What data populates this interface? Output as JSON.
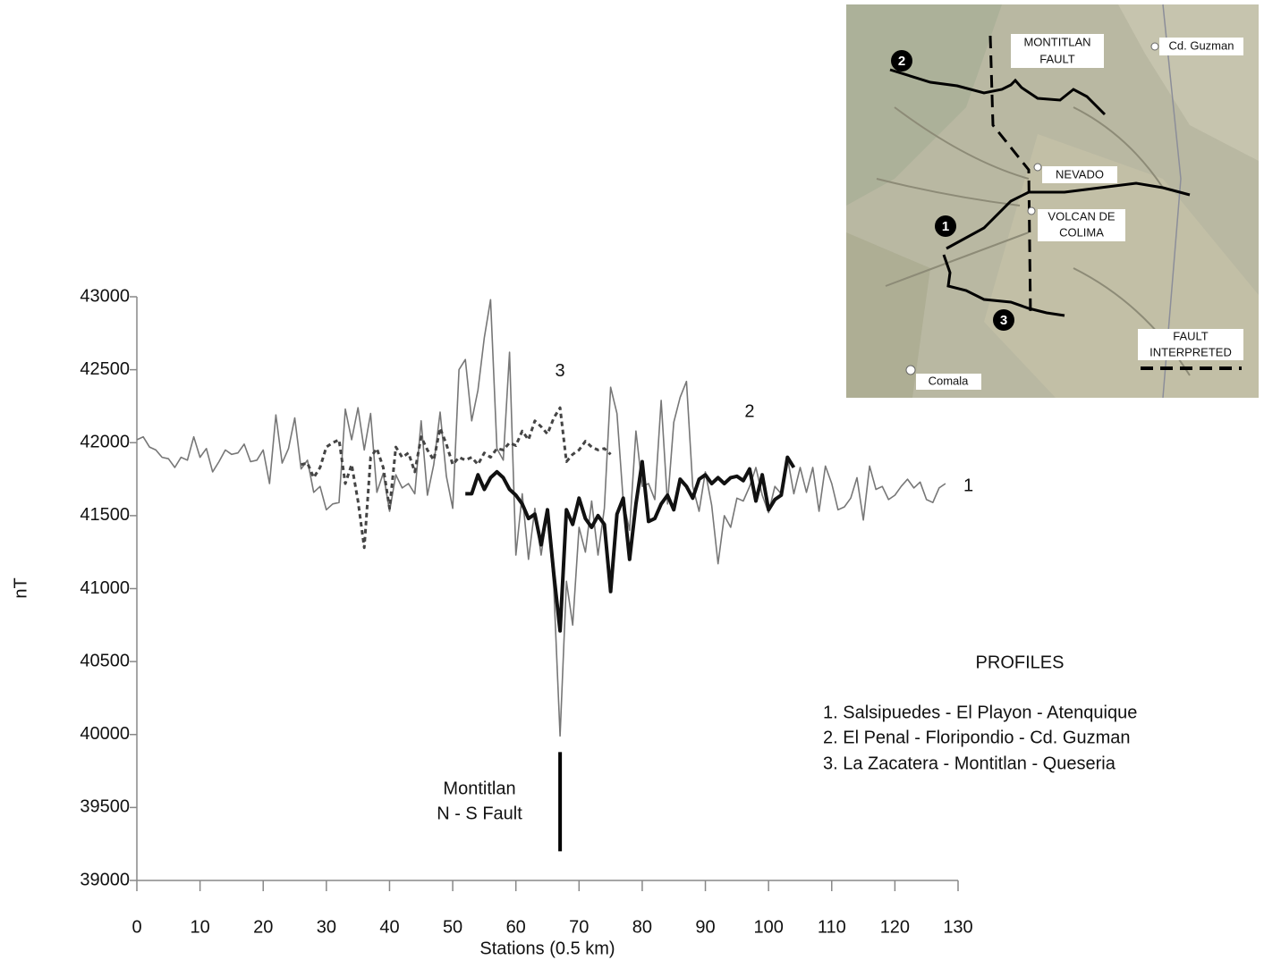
{
  "chart_data": {
    "type": "line",
    "xlabel": "Stations (0.5 km)",
    "ylabel": "nT",
    "xlim": [
      0,
      130
    ],
    "xticks": [
      0,
      10,
      20,
      30,
      40,
      50,
      60,
      70,
      80,
      90,
      100,
      110,
      120,
      130
    ],
    "ylim": [
      39000,
      43000
    ],
    "yticks": [
      39000,
      39500,
      40000,
      40500,
      41000,
      41500,
      42000,
      42500,
      43000
    ],
    "grid": false,
    "series": [
      {
        "name": "1",
        "color": "#777777",
        "style": "thin",
        "x": [
          0,
          1,
          2,
          3,
          4,
          5,
          6,
          7,
          8,
          9,
          10,
          11,
          12,
          13,
          14,
          15,
          16,
          17,
          18,
          19,
          20,
          21,
          22,
          23,
          24,
          25,
          26,
          27,
          28,
          29,
          30,
          31,
          32,
          33,
          34,
          35,
          36,
          37,
          38,
          39,
          40,
          41,
          42,
          43,
          44,
          45,
          46,
          47,
          48,
          49,
          50,
          51,
          52,
          53,
          54,
          55,
          56,
          57,
          58,
          59,
          60,
          61,
          62,
          63,
          64,
          65,
          66,
          67,
          68,
          69,
          70,
          71,
          72,
          73,
          74,
          75,
          76,
          77,
          78,
          79,
          80,
          81,
          82,
          83,
          84,
          85,
          86,
          87,
          88,
          89,
          90,
          91,
          92,
          93,
          94,
          95,
          96,
          97,
          98,
          99,
          100,
          101,
          102,
          103,
          104,
          105,
          106,
          107,
          108,
          109,
          110,
          111,
          112,
          113,
          114,
          115,
          116,
          117,
          118,
          119,
          120,
          121,
          122,
          123,
          124,
          125,
          126,
          127,
          128
        ],
        "values": [
          42020,
          42040,
          41970,
          41950,
          41900,
          41890,
          41830,
          41900,
          41880,
          42040,
          41900,
          41960,
          41800,
          41870,
          41950,
          41920,
          41930,
          41990,
          41870,
          41880,
          41950,
          41720,
          42190,
          41860,
          41960,
          42170,
          41820,
          41880,
          41660,
          41700,
          41540,
          41580,
          41590,
          42230,
          42020,
          42240,
          41950,
          42200,
          41660,
          41790,
          41530,
          41780,
          41690,
          41720,
          41650,
          42150,
          41640,
          41850,
          42210,
          41770,
          41550,
          42500,
          42570,
          42150,
          42360,
          42720,
          42980,
          41960,
          41880,
          42620,
          41230,
          41650,
          41200,
          41550,
          41230,
          41530,
          41000,
          39990,
          41050,
          40750,
          41420,
          41250,
          41600,
          41230,
          41550,
          42380,
          42200,
          41600,
          41400,
          42080,
          41700,
          41720,
          41610,
          42290,
          41580,
          42140,
          42310,
          42420,
          41700,
          41530,
          41800,
          41570,
          41170,
          41500,
          41420,
          41620,
          41600,
          41700,
          41830,
          41640,
          41520,
          41700,
          41650,
          41900,
          41650,
          41830,
          41660,
          41830,
          41530,
          41840,
          41720,
          41540,
          41560,
          41620,
          41760,
          41470,
          41840,
          41680,
          41700,
          41610,
          41640,
          41700,
          41750,
          41690,
          41730,
          41610,
          41590,
          41690,
          41720
        ]
      },
      {
        "name": "2",
        "color": "#111111",
        "style": "thick",
        "x": [
          52,
          53,
          54,
          55,
          56,
          57,
          58,
          59,
          60,
          61,
          62,
          63,
          64,
          65,
          66,
          67,
          68,
          69,
          70,
          71,
          72,
          73,
          74,
          75,
          76,
          77,
          78,
          79,
          80,
          81,
          82,
          83,
          84,
          85,
          86,
          87,
          88,
          89,
          90,
          91,
          92,
          93,
          94,
          95,
          96,
          97,
          98,
          99,
          100,
          101,
          102,
          103,
          104
        ],
        "values": [
          41650,
          41650,
          41780,
          41680,
          41760,
          41800,
          41760,
          41680,
          41640,
          41580,
          41480,
          41510,
          41300,
          41540,
          41100,
          40710,
          41540,
          41440,
          41620,
          41480,
          41420,
          41500,
          41440,
          40980,
          41510,
          41620,
          41200,
          41580,
          41870,
          41460,
          41480,
          41580,
          41640,
          41540,
          41750,
          41700,
          41620,
          41750,
          41780,
          41720,
          41760,
          41720,
          41760,
          41770,
          41740,
          41820,
          41600,
          41780,
          41540,
          41610,
          41640,
          41900,
          41830
        ]
      },
      {
        "name": "3",
        "color": "#444444",
        "style": "dotted",
        "x": [
          26,
          27,
          28,
          29,
          30,
          31,
          32,
          33,
          34,
          35,
          36,
          37,
          38,
          39,
          40,
          41,
          42,
          43,
          44,
          45,
          46,
          47,
          48,
          49,
          50,
          51,
          52,
          53,
          54,
          55,
          56,
          57,
          58,
          59,
          60,
          61,
          62,
          63,
          64,
          65,
          66,
          67,
          68,
          69,
          70,
          71,
          72,
          73,
          74,
          75
        ],
        "values": [
          41850,
          41860,
          41760,
          41830,
          41970,
          42000,
          42020,
          41720,
          41850,
          41600,
          41280,
          41900,
          41960,
          41830,
          41550,
          41970,
          41900,
          41930,
          41800,
          42040,
          41950,
          41880,
          42100,
          41990,
          41850,
          41900,
          41880,
          41900,
          41850,
          41930,
          41900,
          41960,
          41950,
          42000,
          41980,
          42080,
          42020,
          42150,
          42110,
          42060,
          42170,
          42240,
          41870,
          41920,
          41950,
          42010,
          41970,
          41950,
          41960,
          41920
        ]
      }
    ],
    "annotation": {
      "lines": [
        "Montitlan",
        "N - S Fault"
      ],
      "fault_x": 67,
      "fault_y": [
        39200,
        39880
      ]
    },
    "legend": {
      "title": "PROFILES",
      "items": [
        "1. Salsipuedes - El Playon - Atenquique",
        "2. El Penal - Floripondio - Cd. Guzman",
        "3. La Zacatera - Montitlan - Queseria"
      ]
    }
  },
  "map": {
    "labels": [
      {
        "lines": [
          "MONTITLAN",
          "FAULT"
        ]
      },
      {
        "lines": [
          "Cd. Guzman"
        ]
      },
      {
        "lines": [
          "NEVADO"
        ]
      },
      {
        "lines": [
          "VOLCAN DE",
          "COLIMA"
        ]
      },
      {
        "lines": [
          "FAULT",
          "INTERPRETED"
        ]
      },
      {
        "lines": [
          "Comala"
        ]
      }
    ],
    "profile_numbers": [
      "1",
      "2",
      "3"
    ]
  }
}
